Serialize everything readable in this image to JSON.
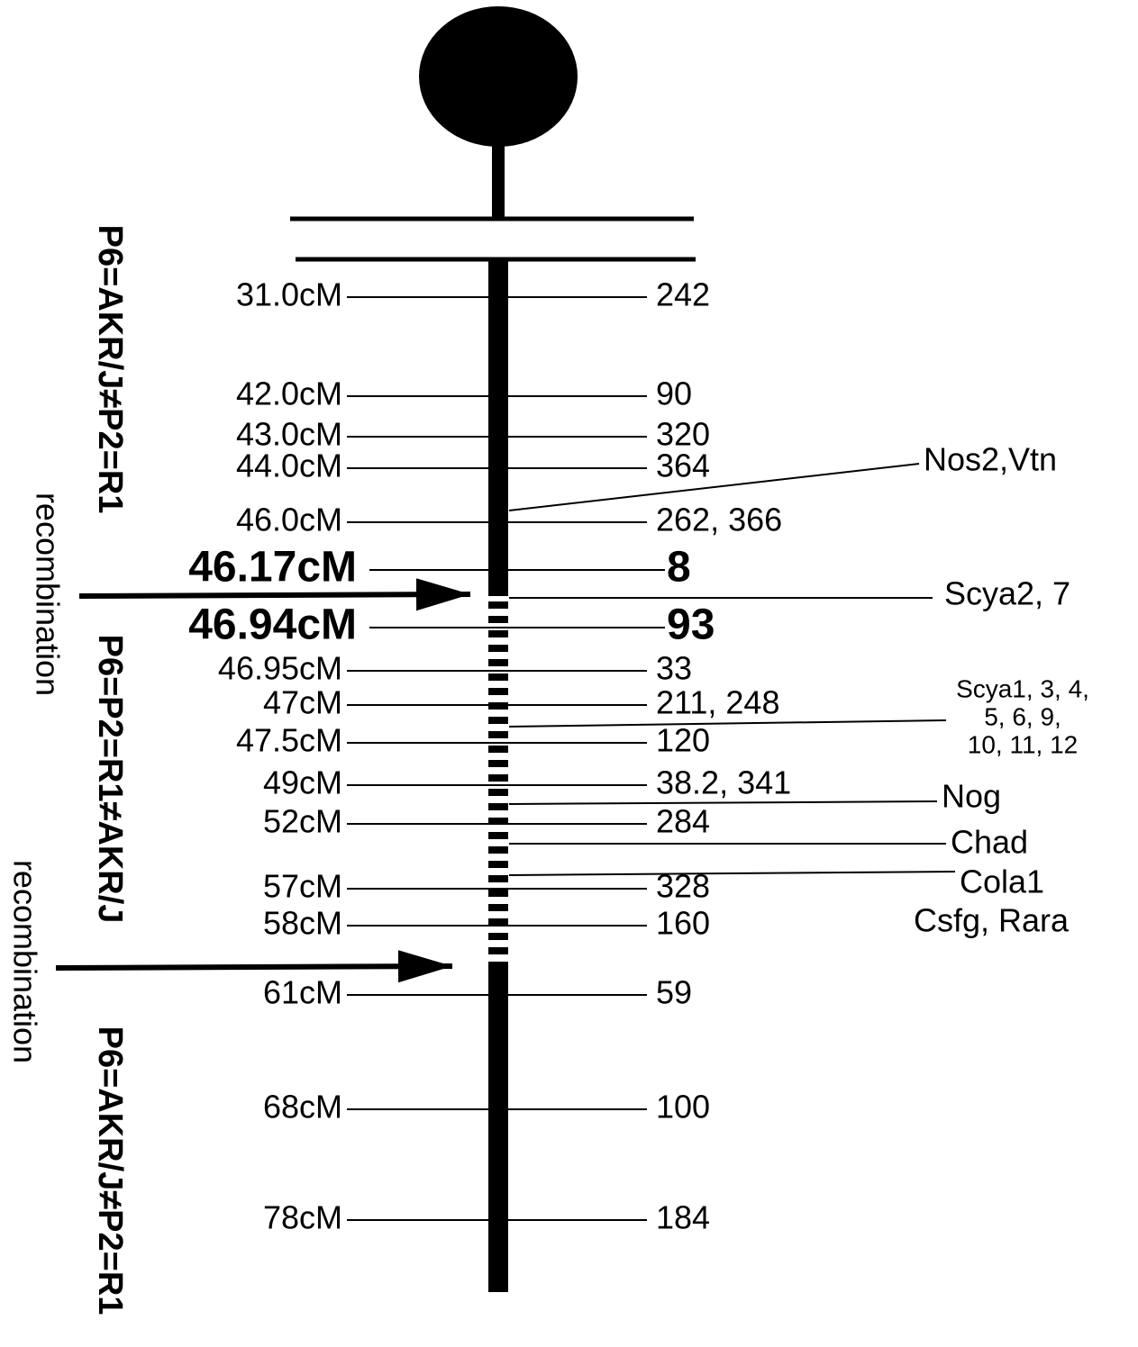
{
  "markers": [
    {
      "position": "31.0cM",
      "marker": "242"
    },
    {
      "position": "42.0cM",
      "marker": "90"
    },
    {
      "position": "43.0cM",
      "marker": "320"
    },
    {
      "position": "44.0cM",
      "marker": "364"
    },
    {
      "position": "46.0cM",
      "marker": "262, 366"
    },
    {
      "position": "46.17cM",
      "marker": "8"
    },
    {
      "position": "46.94cM",
      "marker": "93"
    },
    {
      "position": "46.95cM",
      "marker": "33"
    },
    {
      "position": "47cM",
      "marker": "211, 248"
    },
    {
      "position": "47.5cM",
      "marker": "120"
    },
    {
      "position": "49cM",
      "marker": "38.2, 341"
    },
    {
      "position": "52cM",
      "marker": "284"
    },
    {
      "position": "57cM",
      "marker": "328"
    },
    {
      "position": "58cM",
      "marker": "160"
    },
    {
      "position": "61cM",
      "marker": "59"
    },
    {
      "position": "68cM",
      "marker": "100"
    },
    {
      "position": "78cM",
      "marker": "184"
    }
  ],
  "genes": [
    [
      "Nos2,Vtn"
    ],
    [
      "Scya2, 7"
    ],
    [
      "Scya1, 3, 4,",
      "5, 6, 9,",
      "10, 11, 12"
    ],
    [
      "Nog"
    ],
    [
      "Chad"
    ],
    [
      "Cola1"
    ],
    [
      "Csfg, Rara"
    ]
  ],
  "regions": [
    "P6=AKR/J≠P2=R1",
    "P6=P2=R1≠AKR/J",
    "P6=AKR/J≠P2=R1"
  ],
  "recombination": [
    "recombination",
    "recombination"
  ]
}
